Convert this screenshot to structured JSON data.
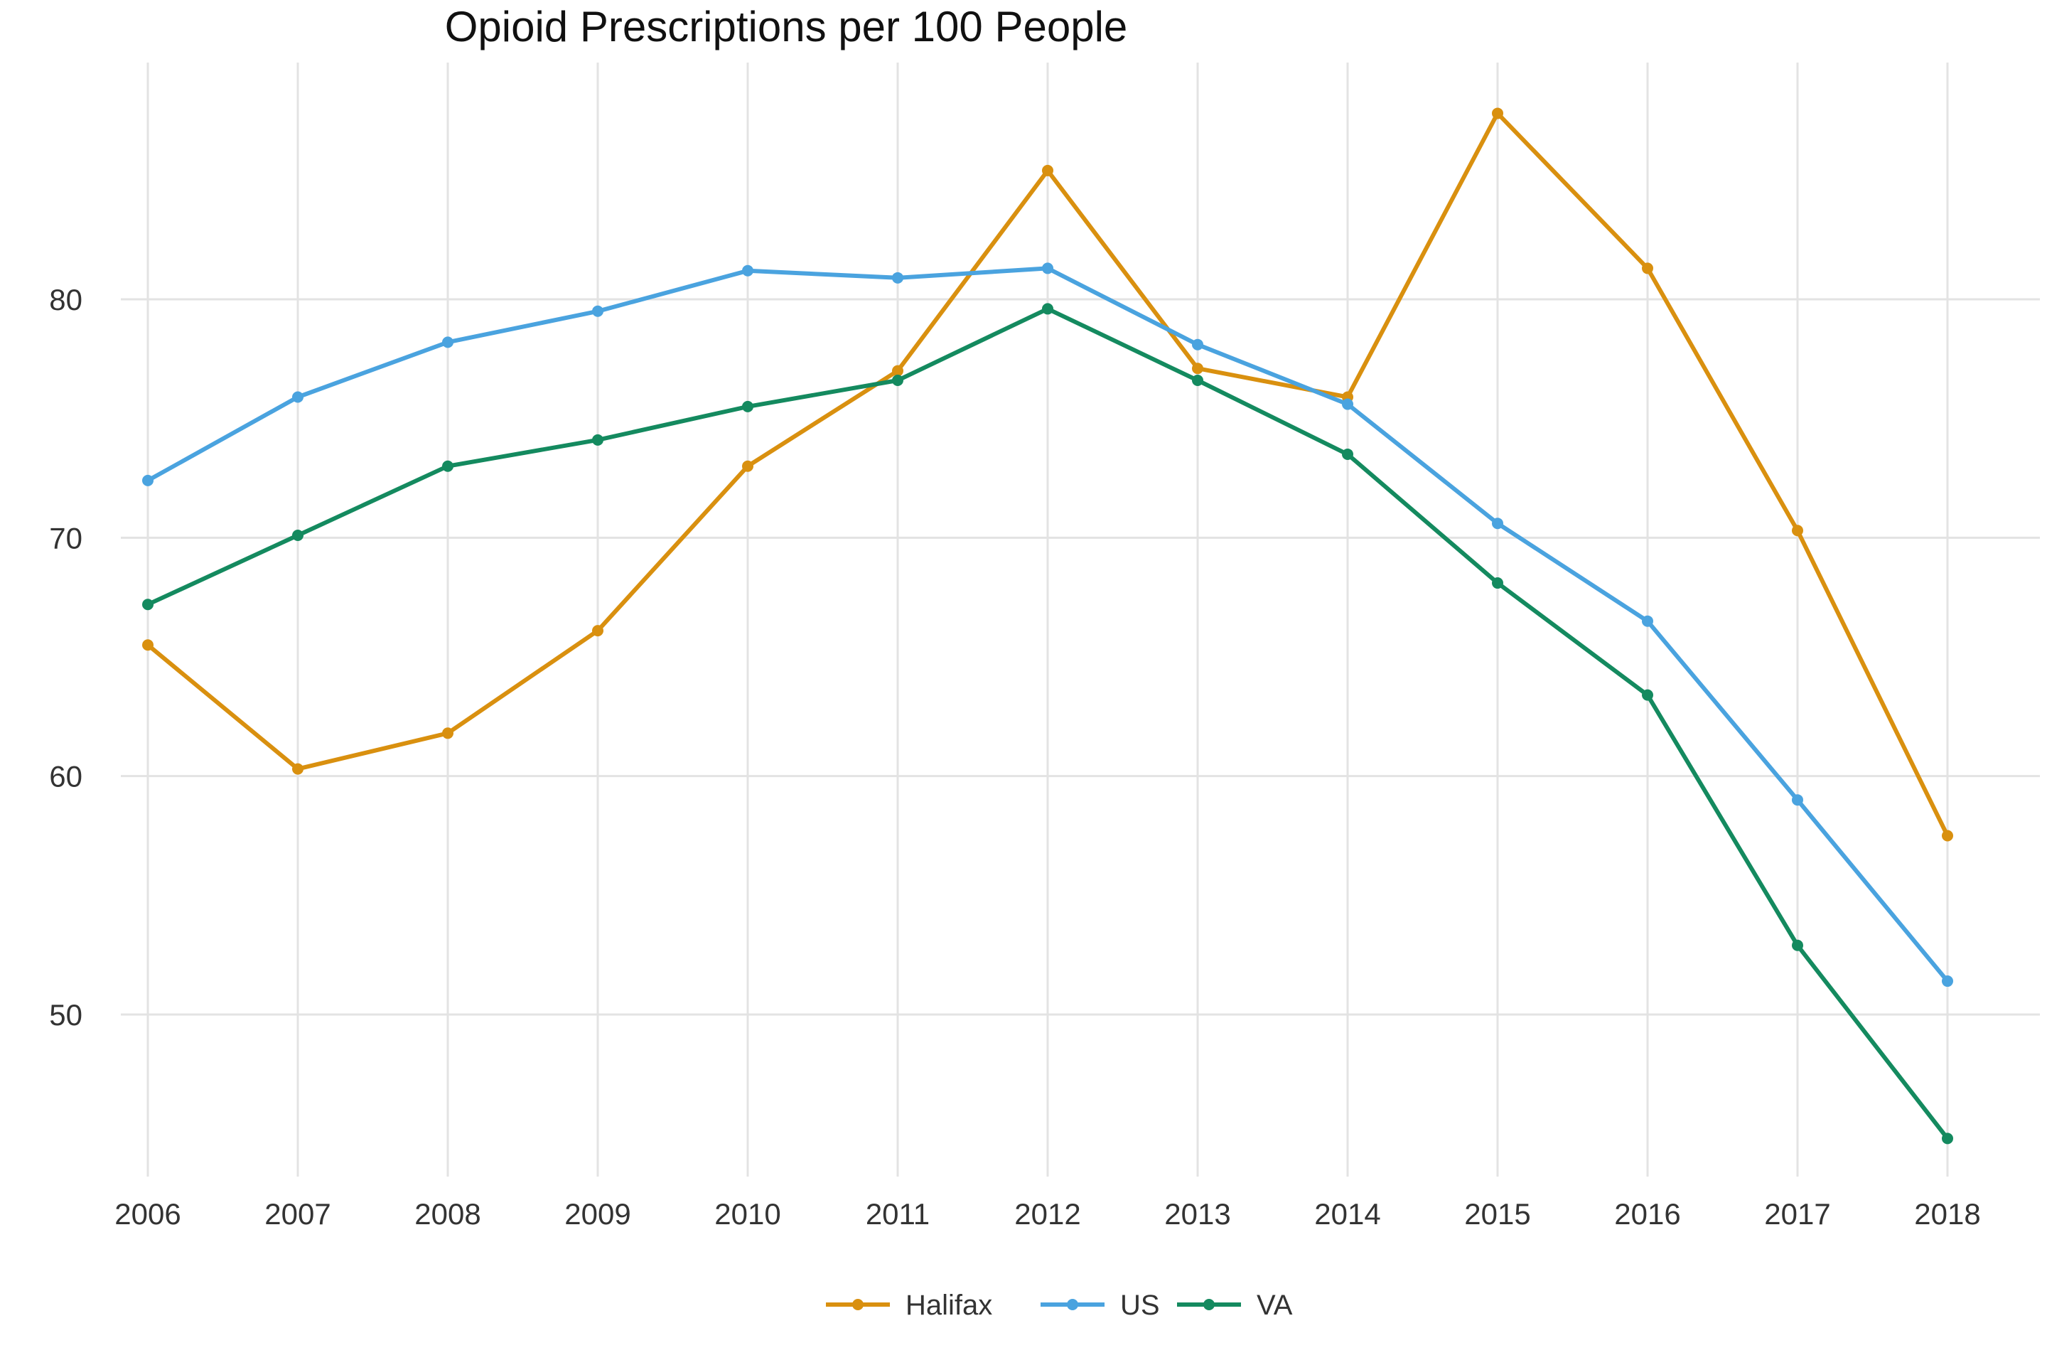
{
  "chart_data": {
    "type": "line",
    "title": "Opioid Prescriptions per 100 People",
    "xlabel": "",
    "ylabel": "",
    "x": [
      2006,
      2007,
      2008,
      2009,
      2010,
      2011,
      2012,
      2013,
      2014,
      2015,
      2016,
      2017,
      2018
    ],
    "xticks": [
      "2006",
      "2007",
      "2008",
      "2009",
      "2010",
      "2011",
      "2012",
      "2013",
      "2014",
      "2015",
      "2016",
      "2017",
      "2018"
    ],
    "yticks": [
      50,
      60,
      70,
      80
    ],
    "ylim": [
      43,
      90
    ],
    "grid": true,
    "legend_position": "bottom",
    "series": [
      {
        "name": "Halifax",
        "color": "#D9900F",
        "values": [
          65.5,
          60.3,
          61.8,
          66.1,
          73.0,
          77.0,
          85.4,
          77.1,
          75.9,
          87.8,
          81.3,
          70.3,
          57.5
        ]
      },
      {
        "name": "US",
        "color": "#4AA3DF",
        "values": [
          72.4,
          75.9,
          78.2,
          79.5,
          81.2,
          80.9,
          81.3,
          78.1,
          75.6,
          70.6,
          66.5,
          59.0,
          51.4
        ]
      },
      {
        "name": "VA",
        "color": "#148A5F",
        "values": [
          67.2,
          70.1,
          73.0,
          74.1,
          75.5,
          76.6,
          79.6,
          76.6,
          73.5,
          68.1,
          63.4,
          52.9,
          44.8
        ]
      }
    ]
  }
}
